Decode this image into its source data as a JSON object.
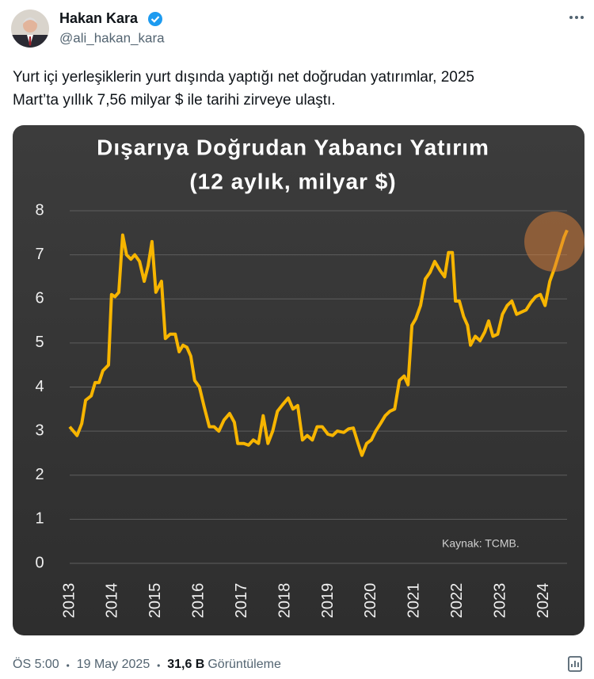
{
  "tweet": {
    "name": "Hakan Kara",
    "handle": "@ali_hakan_kara",
    "text_lines": [
      "Yurt içi yerleşiklerin yurt dışında yaptığı net doğrudan yatırımlar, 2025",
      "Mart’ta yıllık 7,56 milyar $ ile tarihi zirveye ulaştı."
    ],
    "time": "ÖS 5:00",
    "date": "19 May 2025",
    "views": "31,6 B",
    "views_label": "Görüntüleme"
  },
  "chart_data": {
    "type": "line",
    "title": "Dışarıya Doğrudan Yabancı Yatırım",
    "subtitle": "(12 aylık, milyar $)",
    "annotation": "Kaynak: TCMB.",
    "color": "#f7b500",
    "grid": true,
    "x": [
      2013.0,
      2013.17,
      2013.28,
      2013.37,
      2013.5,
      2013.59,
      2013.68,
      2013.77,
      2013.9,
      2013.97,
      2014.05,
      2014.14,
      2014.23,
      2014.32,
      2014.42,
      2014.51,
      2014.62,
      2014.73,
      2014.82,
      2014.91,
      2015.0,
      2015.13,
      2015.22,
      2015.33,
      2015.45,
      2015.54,
      2015.63,
      2015.72,
      2015.81,
      2015.9,
      2016.01,
      2016.12,
      2016.24,
      2016.35,
      2016.46,
      2016.58,
      2016.71,
      2016.82,
      2016.9,
      2017.04,
      2017.15,
      2017.26,
      2017.38,
      2017.49,
      2017.6,
      2017.71,
      2017.82,
      2017.94,
      2018.07,
      2018.18,
      2018.29,
      2018.4,
      2018.51,
      2018.63,
      2018.74,
      2018.86,
      2018.99,
      2019.1,
      2019.21,
      2019.36,
      2019.47,
      2019.58,
      2019.69,
      2019.78,
      2019.89,
      2020.0,
      2020.1,
      2020.21,
      2020.32,
      2020.43,
      2020.54,
      2020.65,
      2020.76,
      2020.85,
      2020.94,
      2021.03,
      2021.14,
      2021.25,
      2021.36,
      2021.47,
      2021.59,
      2021.7,
      2021.79,
      2021.88,
      2021.95,
      2022.04,
      2022.14,
      2022.23,
      2022.3,
      2022.41,
      2022.52,
      2022.63,
      2022.72,
      2022.82,
      2022.93,
      2023.04,
      2023.15,
      2023.26,
      2023.37,
      2023.48,
      2023.59,
      2023.7,
      2023.81,
      2023.92,
      2024.03,
      2024.14,
      2024.25,
      2024.36,
      2024.47,
      2024.54
    ],
    "values": [
      3.1,
      2.9,
      3.17,
      3.7,
      3.8,
      4.1,
      4.1,
      4.37,
      4.5,
      6.1,
      6.05,
      6.15,
      7.45,
      7.0,
      6.9,
      7.0,
      6.85,
      6.4,
      6.75,
      7.3,
      6.15,
      6.4,
      5.1,
      5.2,
      5.2,
      4.8,
      4.95,
      4.9,
      4.7,
      4.15,
      4.0,
      3.55,
      3.1,
      3.1,
      3.0,
      3.25,
      3.4,
      3.2,
      2.72,
      2.72,
      2.68,
      2.8,
      2.72,
      3.35,
      2.72,
      3.0,
      3.45,
      3.6,
      3.75,
      3.5,
      3.58,
      2.8,
      2.9,
      2.8,
      3.1,
      3.1,
      2.93,
      2.9,
      3.0,
      2.97,
      3.05,
      3.07,
      2.72,
      2.45,
      2.72,
      2.8,
      3.0,
      3.17,
      3.35,
      3.45,
      3.5,
      4.15,
      4.25,
      4.05,
      5.4,
      5.55,
      5.85,
      6.45,
      6.6,
      6.85,
      6.65,
      6.5,
      7.05,
      7.05,
      5.95,
      5.95,
      5.6,
      5.4,
      4.95,
      5.15,
      5.05,
      5.25,
      5.5,
      5.15,
      5.2,
      5.65,
      5.85,
      5.95,
      5.65,
      5.7,
      5.75,
      5.92,
      6.05,
      6.1,
      5.85,
      6.4,
      6.7,
      7.05,
      7.4,
      7.56
    ],
    "xlim": [
      2013,
      2024.54
    ],
    "xticks": [
      2013,
      2014,
      2015,
      2016,
      2017,
      2018,
      2019,
      2020,
      2021,
      2022,
      2023,
      2024
    ],
    "ylim": [
      0,
      8
    ],
    "yticks": [
      0,
      1,
      2,
      3,
      4,
      5,
      6,
      7,
      8
    ]
  }
}
